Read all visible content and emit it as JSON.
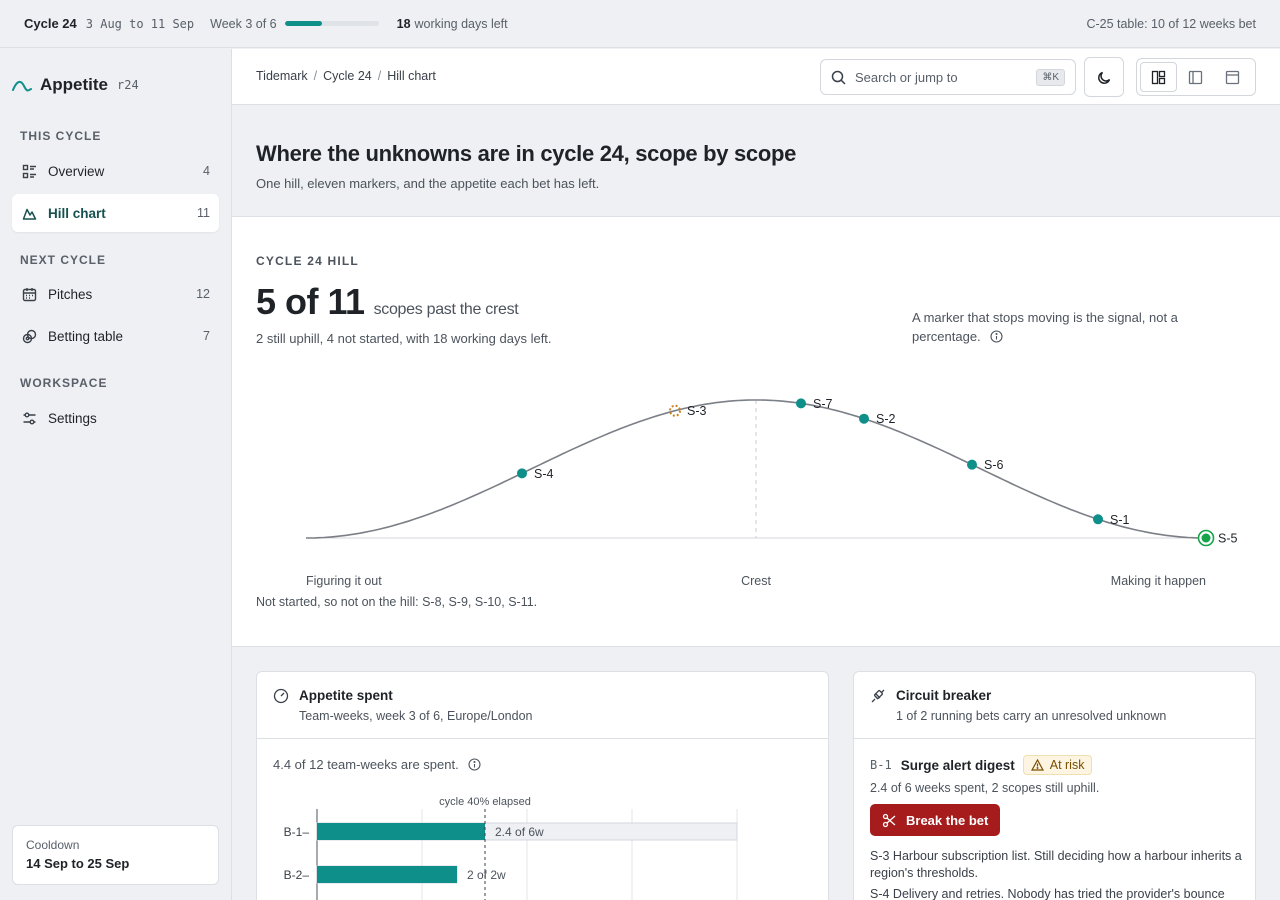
{
  "topbar": {
    "cycle": "Cycle 24",
    "dates": "3 Aug to 11 Sep",
    "week": "Week 3 of 6",
    "progress_fraction": 0.4,
    "days_num": "18",
    "days_text": "working days left",
    "table_status": "C-25 table: 10 of 12 weeks bet"
  },
  "sidebar": {
    "brand": "Appetite",
    "brand_tag": "r24",
    "sections": {
      "this_cycle": "THIS CYCLE",
      "next_cycle": "NEXT CYCLE",
      "workspace": "WORKSPACE"
    },
    "items": [
      {
        "label": "Overview",
        "count": "4",
        "icon": "list-icon"
      },
      {
        "label": "Hill chart",
        "count": "11",
        "icon": "hill-icon"
      },
      {
        "label": "Pitches",
        "count": "12",
        "icon": "calendar-icon"
      },
      {
        "label": "Betting table",
        "count": "7",
        "icon": "chip-icon"
      },
      {
        "label": "Settings",
        "count": "",
        "icon": "sliders-icon"
      }
    ],
    "cooldown": {
      "title": "Cooldown",
      "dates": "14 Sep to 25 Sep"
    }
  },
  "breadcrumb": [
    "Tidemark",
    "Cycle 24",
    "Hill chart"
  ],
  "search": {
    "placeholder": "Search or jump to",
    "shortcut": "⌘K"
  },
  "hero": {
    "title": "Where the unknowns are in cycle 24, scope by scope",
    "subtitle": "One hill, eleven markers, and the appetite each bet has left."
  },
  "hill": {
    "eyebrow": "CYCLE 24 HILL",
    "big_number": "5 of 11",
    "big_unit": "scopes past the crest",
    "summary": "2 still uphill, 4 not started, with 18 working days left.",
    "note": "A marker that stops moving is the signal, not a percentage.",
    "axis_labels": {
      "left": "Figuring it out",
      "center": "Crest",
      "right": "Making it happen"
    },
    "not_started": "Not started, so not on the hill: S-8, S-9, S-10, S-11.",
    "colors": {
      "marker": "#0e8f8a",
      "stalled": "#c7821d",
      "done": "#16a34a"
    }
  },
  "chart_data": {
    "type": "scatter",
    "x_range": [
      0,
      100
    ],
    "points": [
      {
        "label": "S-4",
        "x": 24,
        "status": "uphill"
      },
      {
        "label": "S-3",
        "x": 41,
        "status": "stalled"
      },
      {
        "label": "S-7",
        "x": 55,
        "status": "downhill"
      },
      {
        "label": "S-2",
        "x": 62,
        "status": "downhill"
      },
      {
        "label": "S-6",
        "x": 74,
        "status": "downhill"
      },
      {
        "label": "S-1",
        "x": 88,
        "status": "downhill"
      },
      {
        "label": "S-5",
        "x": 100,
        "status": "done"
      }
    ]
  },
  "appetite": {
    "title": "Appetite spent",
    "subtitle": "Team-weeks, week 3 of 6, Europe/London",
    "summary": "4.4 of 12 team-weeks are spent.",
    "elapsed_label": "cycle 40% elapsed",
    "elapsed_fraction": 0.4,
    "axis_max": 6,
    "bars": [
      {
        "label": "B-1",
        "spent": 2.4,
        "appetite": 6,
        "text": "2.4 of 6w"
      },
      {
        "label": "B-2",
        "spent": 2,
        "appetite": 2,
        "text": "2 of 2w"
      }
    ]
  },
  "breaker": {
    "title": "Circuit breaker",
    "subtitle": "1 of 2 running bets carry an unresolved unknown",
    "bet_id": "B-1",
    "bet_name": "Surge alert digest",
    "badge": "At risk",
    "detail": "2.4 of 6 weeks spent, 2 scopes still uphill.",
    "button": "Break the bet",
    "scopes": [
      "S-3 Harbour subscription list. Still deciding how a harbour inherits a region's thresholds.",
      "S-4 Delivery and retries. Nobody has tried the provider's bounce"
    ]
  }
}
